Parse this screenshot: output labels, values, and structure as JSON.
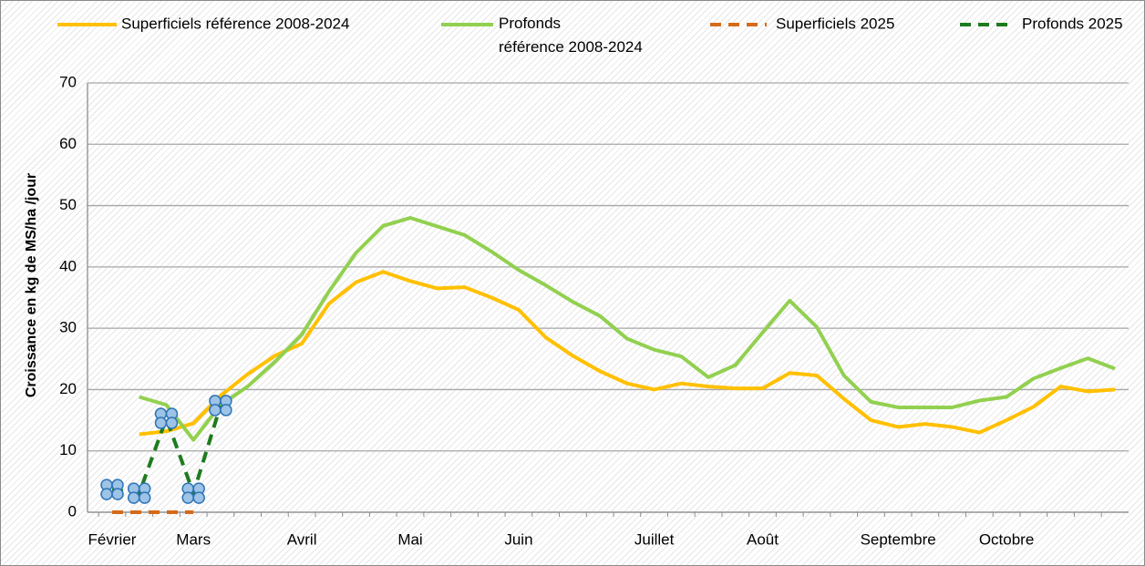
{
  "chart_data": {
    "type": "line",
    "y_label": "Croissance en kg de MS/ha /jour",
    "categories": [
      "Février",
      null,
      null,
      "Mars",
      null,
      null,
      null,
      "Avril",
      null,
      null,
      null,
      "Mai",
      null,
      null,
      null,
      "Juin",
      null,
      null,
      null,
      null,
      "Juillet",
      null,
      null,
      null,
      "Août",
      null,
      null,
      null,
      null,
      "Septembre",
      null,
      null,
      null,
      "Octobre",
      null,
      null,
      null,
      null
    ],
    "series": [
      {
        "name": "Superficiels référence 2008-2024",
        "color": "#ffc000",
        "dash": false,
        "marker": false,
        "values": [
          null,
          12.7,
          13.2,
          14.5,
          19,
          22.5,
          25.5,
          27.5,
          34,
          37.5,
          39.2,
          37.7,
          36.5,
          36.7,
          35,
          33,
          28.5,
          25.5,
          23,
          21,
          20,
          21,
          20.5,
          20.2,
          20.2,
          22.7,
          22.3,
          18.5,
          15,
          13.9,
          14.4,
          13.9,
          13,
          15,
          17.2,
          20.5,
          19.7,
          20
        ]
      },
      {
        "name": "Profonds référence 2008-2024",
        "color": "#92d050",
        "dash": false,
        "marker": false,
        "values": [
          null,
          18.8,
          17.5,
          11.8,
          17.5,
          20.5,
          24.5,
          29,
          36,
          42.3,
          46.7,
          48,
          46.6,
          45.2,
          42.5,
          39.5,
          37,
          34.3,
          32,
          28.3,
          26.5,
          25.4,
          22,
          24,
          29.3,
          34.5,
          30.2,
          22.3,
          18,
          17.1,
          17.1,
          17.1,
          18.2,
          18.8,
          21.8,
          23.5,
          25.1,
          23.4
        ]
      },
      {
        "name": "Superficiels 2025",
        "color": "#d46b1a",
        "dash": true,
        "marker": false,
        "values": [
          0,
          0,
          0,
          0,
          null,
          null,
          null,
          null,
          null,
          null,
          null,
          null,
          null,
          null,
          null,
          null,
          null,
          null,
          null,
          null,
          null,
          null,
          null,
          null,
          null,
          null,
          null,
          null,
          null,
          null,
          null,
          null,
          null,
          null,
          null,
          null,
          null,
          null
        ]
      },
      {
        "name": "Profonds 2025",
        "color": "#1e7b1e",
        "dash": true,
        "marker": true,
        "values": [
          3.7,
          3.1,
          15.3,
          3.1,
          17.4,
          null,
          null,
          null,
          null,
          null,
          null,
          null,
          null,
          null,
          null,
          null,
          null,
          null,
          null,
          null,
          null,
          null,
          null,
          null,
          null,
          null,
          null,
          null,
          null,
          null,
          null,
          null,
          null,
          null,
          null,
          null,
          null,
          null
        ]
      }
    ],
    "ylim": [
      0,
      70
    ],
    "yticks": [
      0,
      10,
      20,
      30,
      40,
      50,
      60,
      70
    ],
    "grid": true
  }
}
